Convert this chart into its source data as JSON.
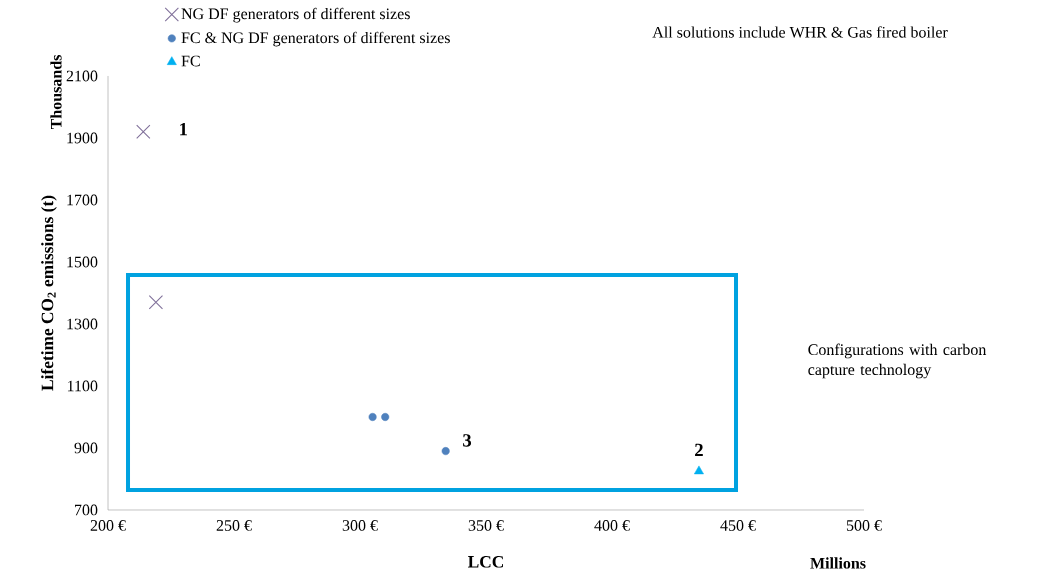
{
  "chart_data": {
    "type": "scatter",
    "xlabel": "LCC",
    "ylabel": "Lifetime CO$_{2}$ emissions (t)",
    "xlim": [
      200,
      500
    ],
    "ylim": [
      700,
      2100
    ],
    "xticks": [
      {
        "value": 200,
        "label": "200 €"
      },
      {
        "value": 250,
        "label": "250 €"
      },
      {
        "value": 300,
        "label": "300 €"
      },
      {
        "value": 350,
        "label": "350 €"
      },
      {
        "value": 400,
        "label": "400 €"
      },
      {
        "value": 450,
        "label": "450 €"
      },
      {
        "value": 500,
        "label": "500 €"
      }
    ],
    "yticks": [
      700,
      900,
      1100,
      1300,
      1500,
      1700,
      1900,
      2100
    ],
    "grid": false,
    "legend": "top left",
    "series": [
      {
        "name": "NG DF generators of different sizes",
        "color": "#7f6f99",
        "marker": "cross",
        "x": [
          214,
          219
        ],
        "values": [
          1920,
          1370
        ]
      },
      {
        "name": "FC & NG DF generators of different sizes",
        "color": "#4f81bd",
        "marker": "circle",
        "x": [
          305,
          310,
          334
        ],
        "values": [
          1000,
          1000,
          890
        ]
      },
      {
        "name": "FC",
        "color": "#00b0f0",
        "marker": "triangle",
        "x": [
          434.5
        ],
        "values": [
          825
        ]
      }
    ],
    "annotations": [
      {
        "text": "1",
        "x": 214,
        "y": 1920
      },
      {
        "text": "2",
        "x": 434.5,
        "y": 825
      },
      {
        "text": "3",
        "x": 334,
        "y": 890
      },
      "All solutions include WHR & Gas fired boiler",
      "Configurations with carbon capture technology",
      "Thousands",
      "Millions"
    ]
  }
}
